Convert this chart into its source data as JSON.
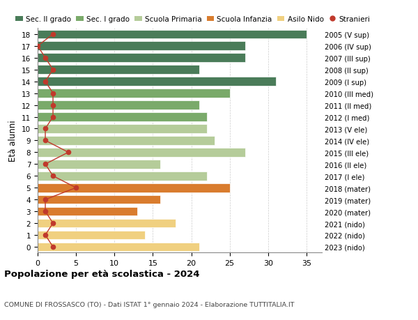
{
  "ages": [
    18,
    17,
    16,
    15,
    14,
    13,
    12,
    11,
    10,
    9,
    8,
    7,
    6,
    5,
    4,
    3,
    2,
    1,
    0
  ],
  "right_labels": [
    "2005 (V sup)",
    "2006 (IV sup)",
    "2007 (III sup)",
    "2008 (II sup)",
    "2009 (I sup)",
    "2010 (III med)",
    "2011 (II med)",
    "2012 (I med)",
    "2013 (V ele)",
    "2014 (IV ele)",
    "2015 (III ele)",
    "2016 (II ele)",
    "2017 (I ele)",
    "2018 (mater)",
    "2019 (mater)",
    "2020 (mater)",
    "2021 (nido)",
    "2022 (nido)",
    "2023 (nido)"
  ],
  "bar_values": [
    35,
    27,
    27,
    21,
    31,
    25,
    21,
    22,
    22,
    23,
    27,
    16,
    22,
    25,
    16,
    13,
    18,
    14,
    21
  ],
  "stranieri": [
    2,
    0,
    1,
    2,
    1,
    2,
    2,
    2,
    1,
    1,
    4,
    1,
    2,
    5,
    1,
    1,
    2,
    1,
    2
  ],
  "bar_colors": [
    "#4a7c59",
    "#4a7c59",
    "#4a7c59",
    "#4a7c59",
    "#4a7c59",
    "#7aaa6a",
    "#7aaa6a",
    "#7aaa6a",
    "#b5cc9a",
    "#b5cc9a",
    "#b5cc9a",
    "#b5cc9a",
    "#b5cc9a",
    "#d97c2e",
    "#d97c2e",
    "#d97c2e",
    "#f0d080",
    "#f0d080",
    "#f0d080"
  ],
  "legend_labels": [
    "Sec. II grado",
    "Sec. I grado",
    "Scuola Primaria",
    "Scuola Infanzia",
    "Asilo Nido",
    "Stranieri"
  ],
  "legend_colors": [
    "#4a7c59",
    "#7aaa6a",
    "#b5cc9a",
    "#d97c2e",
    "#f0d080",
    "#c0392b"
  ],
  "stranieri_color": "#c0392b",
  "ylabel": "Età alunni",
  "title": "Popolazione per età scolastica - 2024",
  "subtitle": "COMUNE DI FROSSASCO (TO) - Dati ISTAT 1° gennaio 2024 - Elaborazione TUTTITALIA.IT",
  "xlim": [
    0,
    37
  ],
  "xticks": [
    0,
    5,
    10,
    15,
    20,
    25,
    30,
    35
  ],
  "bar_height": 0.75,
  "background_color": "#ffffff",
  "grid_color": "#cccccc"
}
